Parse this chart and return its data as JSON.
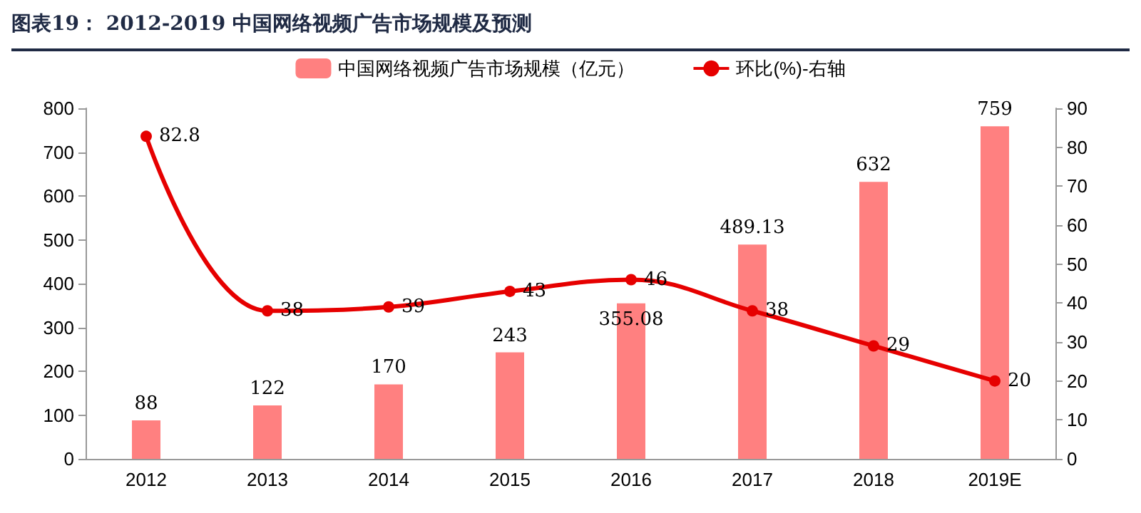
{
  "chart_data": {
    "type": "bar",
    "title": "图表19：  2012-2019 中国网络视频广告市场规模及预测",
    "categories": [
      "2012",
      "2013",
      "2014",
      "2015",
      "2016",
      "2017",
      "2018",
      "2019E"
    ],
    "series": [
      {
        "name": "中国网络视频广告市场规模（亿元）",
        "color": "#ff8080",
        "values": [
          88,
          122,
          170,
          243,
          355.08,
          489.13,
          632,
          759
        ]
      },
      {
        "name": "环比(%)-右轴",
        "type": "line",
        "axis": "y2",
        "color": "#e60000",
        "values": [
          82.8,
          38,
          39,
          43,
          46,
          38,
          29,
          20
        ]
      }
    ],
    "ylim": [
      0,
      800
    ],
    "yticks": [
      0,
      100,
      200,
      300,
      400,
      500,
      600,
      700,
      800
    ],
    "y2lim": [
      0,
      90
    ],
    "y2ticks": [
      0,
      10,
      20,
      30,
      40,
      50,
      60,
      70,
      80,
      90
    ],
    "data_labels": true,
    "legend": "top",
    "marker": "circle",
    "line_style": "solid"
  }
}
